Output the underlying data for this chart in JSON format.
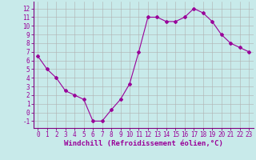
{
  "x": [
    0,
    1,
    2,
    3,
    4,
    5,
    6,
    7,
    8,
    9,
    10,
    11,
    12,
    13,
    14,
    15,
    16,
    17,
    18,
    19,
    20,
    21,
    22,
    23
  ],
  "y": [
    6.5,
    5.0,
    4.0,
    2.5,
    2.0,
    1.5,
    -1.0,
    -1.0,
    0.3,
    1.5,
    3.3,
    7.0,
    11.0,
    11.0,
    10.5,
    10.5,
    11.0,
    12.0,
    11.5,
    10.5,
    9.0,
    8.0,
    7.5,
    7.0
  ],
  "line_color": "#990099",
  "marker": "D",
  "marker_size": 2,
  "bg_color": "#c8eaea",
  "grid_color": "#b0b0b0",
  "xlabel": "Windchill (Refroidissement éolien,°C)",
  "xlim": [
    -0.5,
    23.5
  ],
  "ylim": [
    -1.8,
    12.8
  ],
  "yticks": [
    -1,
    0,
    1,
    2,
    3,
    4,
    5,
    6,
    7,
    8,
    9,
    10,
    11,
    12
  ],
  "xticks": [
    0,
    1,
    2,
    3,
    4,
    5,
    6,
    7,
    8,
    9,
    10,
    11,
    12,
    13,
    14,
    15,
    16,
    17,
    18,
    19,
    20,
    21,
    22,
    23
  ],
  "tick_fontsize": 5.5,
  "xlabel_fontsize": 6.5,
  "spine_color": "#800080",
  "linewidth": 0.8
}
